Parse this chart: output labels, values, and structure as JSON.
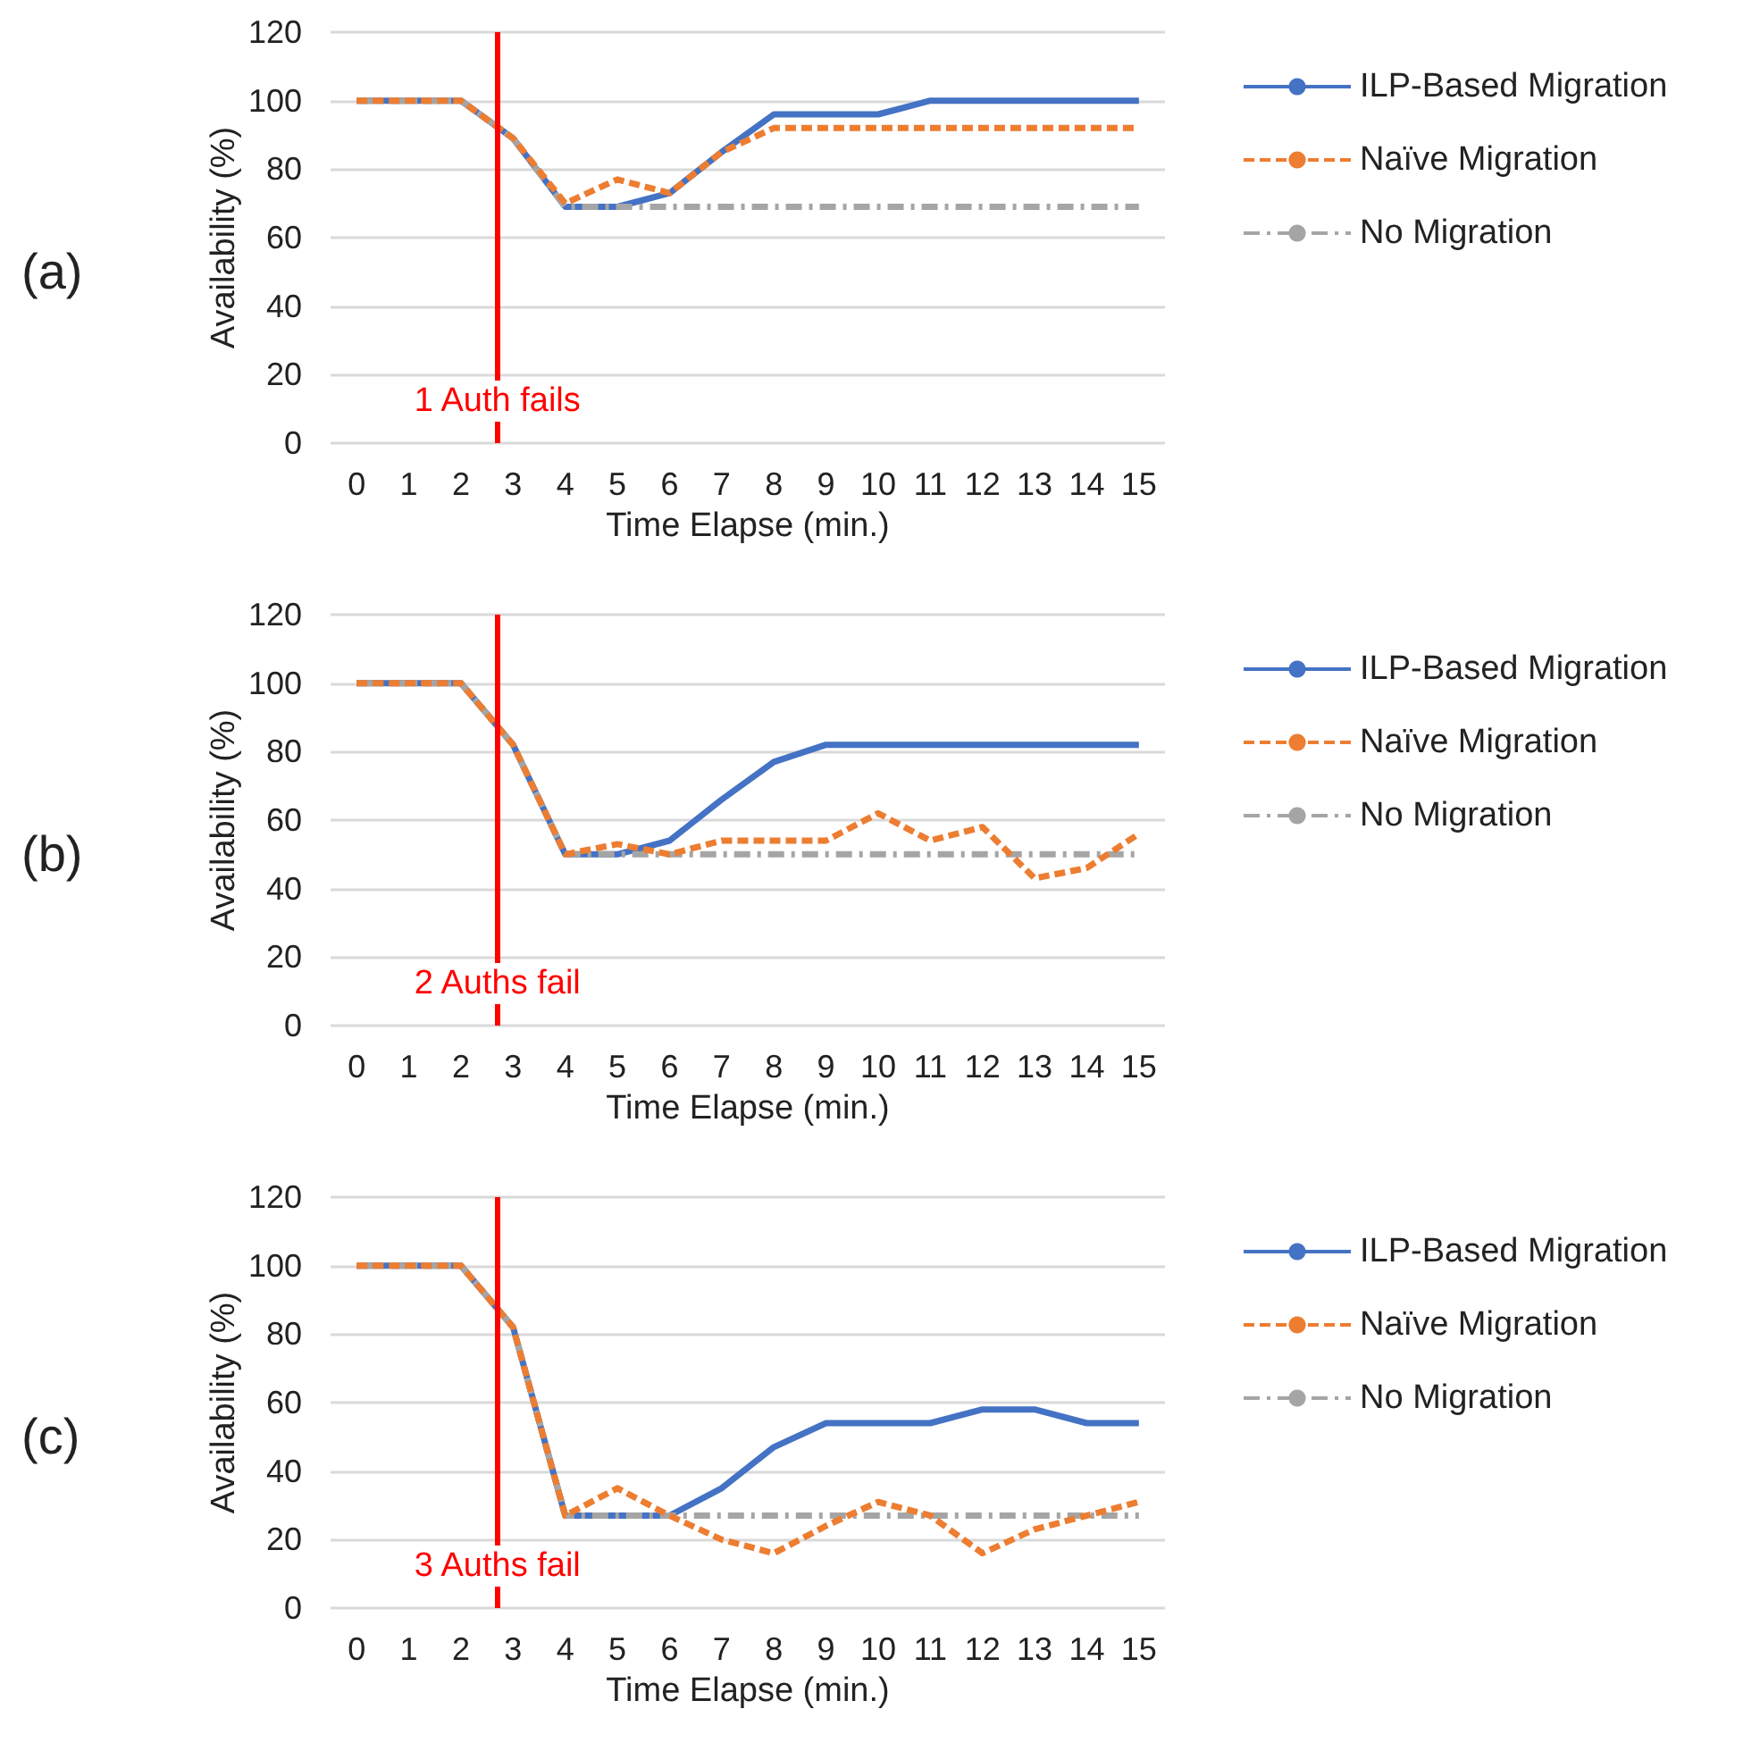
{
  "chart_data": [
    {
      "type": "line",
      "annotations": [
        "(a)"
      ],
      "xlabel": "Time Elapse (min.)",
      "ylabel": "Availability (%)",
      "x": [
        0,
        1,
        2,
        3,
        4,
        5,
        6,
        7,
        8,
        9,
        10,
        11,
        12,
        13,
        14,
        15
      ],
      "xlim": [
        -0.5,
        15.5
      ],
      "xticks": [
        0,
        1,
        2,
        3,
        4,
        5,
        6,
        7,
        8,
        9,
        10,
        11,
        12,
        13,
        14,
        15
      ],
      "ylim": [
        0,
        120
      ],
      "yticks": [
        0,
        20,
        40,
        60,
        80,
        100,
        120
      ],
      "grid": "y",
      "legend": "right",
      "marker": "none",
      "ref_lines": [
        {
          "axis": "x",
          "value": 2.7,
          "label": "1 Auth fails",
          "color": "#ff0000"
        }
      ],
      "series": [
        {
          "name": "ILP-Based Migration",
          "color": "#4472c4",
          "line_style": "solid",
          "values": [
            100,
            100,
            100,
            89,
            69,
            69,
            73,
            85,
            96,
            96,
            96,
            100,
            100,
            100,
            100,
            100
          ]
        },
        {
          "name": "Naïve Migration",
          "color": "#ed7d31",
          "line_style": "dashed",
          "values": [
            100,
            100,
            100,
            89,
            70,
            77,
            73,
            85,
            92,
            92,
            92,
            92,
            92,
            92,
            92,
            92
          ]
        },
        {
          "name": "No Migration",
          "color": "#a5a5a5",
          "line_style": "dashdot",
          "values": [
            100,
            100,
            100,
            89,
            69,
            69,
            69,
            69,
            69,
            69,
            69,
            69,
            69,
            69,
            69,
            69
          ]
        }
      ]
    },
    {
      "type": "line",
      "annotations": [
        "(b)"
      ],
      "xlabel": "Time Elapse (min.)",
      "ylabel": "Availability (%)",
      "x": [
        0,
        1,
        2,
        3,
        4,
        5,
        6,
        7,
        8,
        9,
        10,
        11,
        12,
        13,
        14,
        15
      ],
      "xlim": [
        -0.5,
        15.5
      ],
      "xticks": [
        0,
        1,
        2,
        3,
        4,
        5,
        6,
        7,
        8,
        9,
        10,
        11,
        12,
        13,
        14,
        15
      ],
      "ylim": [
        0,
        120
      ],
      "yticks": [
        0,
        20,
        40,
        60,
        80,
        100,
        120
      ],
      "grid": "y",
      "legend": "right",
      "marker": "none",
      "ref_lines": [
        {
          "axis": "x",
          "value": 2.7,
          "label": "2 Auths fail",
          "color": "#ff0000"
        }
      ],
      "series": [
        {
          "name": "ILP-Based Migration",
          "color": "#4472c4",
          "line_style": "solid",
          "values": [
            100,
            100,
            100,
            82,
            50,
            50,
            54,
            66,
            77,
            82,
            82,
            82,
            82,
            82,
            82,
            82
          ]
        },
        {
          "name": "Naïve Migration",
          "color": "#ed7d31",
          "line_style": "dashed",
          "values": [
            100,
            100,
            100,
            82,
            50,
            53,
            50,
            54,
            54,
            54,
            62,
            54,
            58,
            43,
            46,
            56
          ]
        },
        {
          "name": "No Migration",
          "color": "#a5a5a5",
          "line_style": "dashdot",
          "values": [
            100,
            100,
            100,
            82,
            50,
            50,
            50,
            50,
            50,
            50,
            50,
            50,
            50,
            50,
            50,
            50
          ]
        }
      ]
    },
    {
      "type": "line",
      "annotations": [
        "(c)"
      ],
      "xlabel": "Time Elapse (min.)",
      "ylabel": "Availability (%)",
      "x": [
        0,
        1,
        2,
        3,
        4,
        5,
        6,
        7,
        8,
        9,
        10,
        11,
        12,
        13,
        14,
        15
      ],
      "xlim": [
        -0.5,
        15.5
      ],
      "xticks": [
        0,
        1,
        2,
        3,
        4,
        5,
        6,
        7,
        8,
        9,
        10,
        11,
        12,
        13,
        14,
        15
      ],
      "ylim": [
        0,
        120
      ],
      "yticks": [
        0,
        20,
        40,
        60,
        80,
        100,
        120
      ],
      "grid": "y",
      "legend": "right",
      "marker": "none",
      "ref_lines": [
        {
          "axis": "x",
          "value": 2.7,
          "label": "3 Auths fail",
          "color": "#ff0000"
        }
      ],
      "series": [
        {
          "name": "ILP-Based Migration",
          "color": "#4472c4",
          "line_style": "solid",
          "values": [
            100,
            100,
            100,
            82,
            27,
            27,
            27,
            35,
            47,
            54,
            54,
            54,
            58,
            58,
            54,
            54
          ]
        },
        {
          "name": "Naïve Migration",
          "color": "#ed7d31",
          "line_style": "dashed",
          "values": [
            100,
            100,
            100,
            82,
            27,
            35,
            27,
            20,
            16,
            24,
            31,
            27,
            16,
            23,
            27,
            31
          ]
        },
        {
          "name": "No Migration",
          "color": "#a5a5a5",
          "line_style": "dashdot",
          "values": [
            100,
            100,
            100,
            82,
            27,
            27,
            27,
            27,
            27,
            27,
            27,
            27,
            27,
            27,
            27,
            27
          ]
        }
      ]
    }
  ]
}
